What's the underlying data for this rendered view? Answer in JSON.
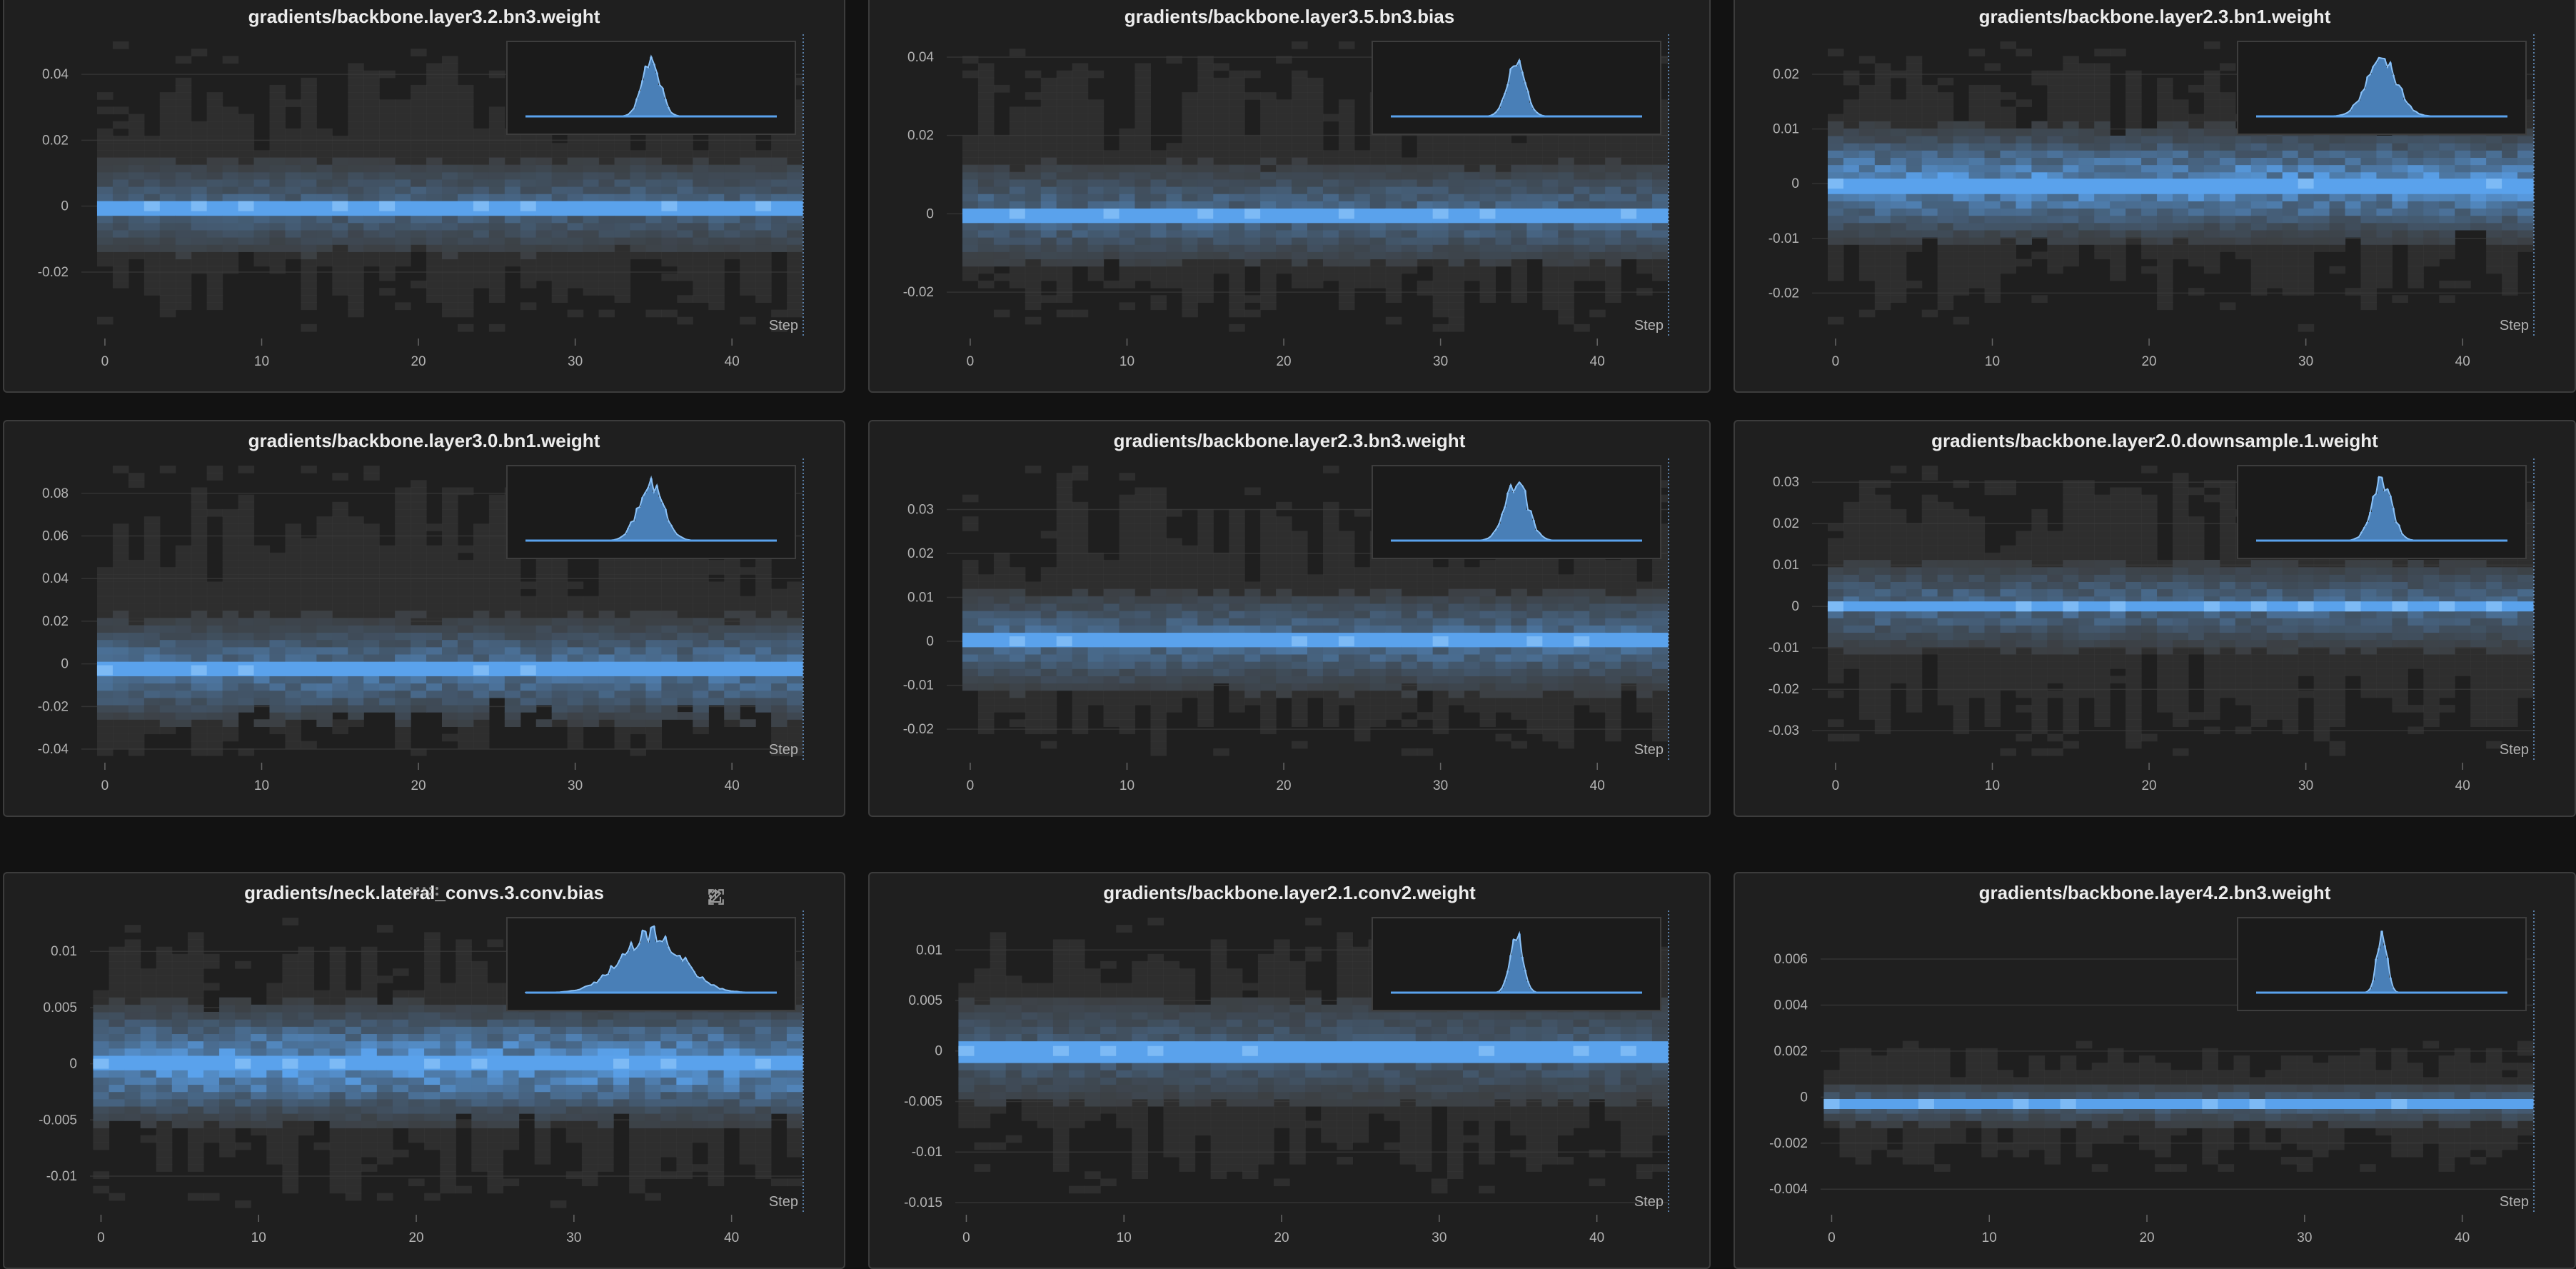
{
  "colors": {
    "panel_bg": "#1f1f1f",
    "panel_border": "#3c3c3c",
    "grid_line": "#333333",
    "accent_blue": "#5aa2ec",
    "dim_cell": "#3a3a3a",
    "tick_text": "#b3b3b3"
  },
  "step_label": "Step",
  "panel_toolbar": {
    "icons": [
      "drag-handle-icon",
      "share-icon",
      "edit-icon",
      "fullscreen-icon",
      "more-options-icon"
    ]
  },
  "chart_data": [
    {
      "type": "heatmap",
      "title": "gradients/backbone.layer3.2.bn3.weight",
      "xlabel": "Step",
      "x_ticks": [
        0,
        10,
        20,
        30,
        40
      ],
      "xlim": [
        -1.5,
        44.5
      ],
      "y_ticks": [
        0.04,
        0.02,
        0,
        -0.02
      ],
      "y_tick_labels": [
        "0.04",
        "0.02",
        "0",
        "-0.02"
      ],
      "ylim": [
        -0.038,
        0.05
      ],
      "center_value": 0,
      "spread": 0.018,
      "max_extent": 0.046,
      "band_strength": 0.35,
      "inset_sharpness": 0.035,
      "seed": 11
    },
    {
      "type": "heatmap",
      "title": "gradients/backbone.layer3.5.bn3.bias",
      "xlabel": "Step",
      "x_ticks": [
        0,
        10,
        20,
        30,
        40
      ],
      "xlim": [
        -1.5,
        44.5
      ],
      "y_ticks": [
        0.04,
        0.02,
        0,
        -0.02
      ],
      "y_tick_labels": [
        "0.04",
        "0.02",
        "0",
        "-0.02"
      ],
      "ylim": [
        -0.03,
        0.044
      ],
      "center_value": 0,
      "spread": 0.016,
      "max_extent": 0.04,
      "band_strength": 0.4,
      "inset_sharpness": 0.035,
      "seed": 23
    },
    {
      "type": "heatmap",
      "title": "gradients/backbone.layer2.3.bn1.weight",
      "xlabel": "Step",
      "x_ticks": [
        0,
        10,
        20,
        30,
        40
      ],
      "xlim": [
        -1.5,
        44.5
      ],
      "y_ticks": [
        0.02,
        0.01,
        0,
        -0.01,
        -0.02
      ],
      "y_tick_labels": [
        "0.02",
        "0.01",
        "0",
        "-0.01",
        "-0.02"
      ],
      "ylim": [
        -0.027,
        0.026
      ],
      "center_value": 0,
      "spread": 0.012,
      "max_extent": 0.024,
      "band_strength": 0.75,
      "inset_sharpness": 0.06,
      "seed": 37
    },
    {
      "type": "heatmap",
      "title": "gradients/backbone.layer3.0.bn1.weight",
      "xlabel": "Step",
      "x_ticks": [
        0,
        10,
        20,
        30,
        40
      ],
      "xlim": [
        -1.5,
        44.5
      ],
      "y_ticks": [
        0.08,
        0.06,
        0.04,
        0.02,
        0,
        -0.02,
        -0.04
      ],
      "y_tick_labels": [
        "0.08",
        "0.06",
        "0.04",
        "0.02",
        "0",
        "-0.02",
        "-0.04"
      ],
      "ylim": [
        -0.043,
        0.093
      ],
      "center_value": -0.003,
      "spread": 0.03,
      "max_extent": 0.09,
      "band_strength": 0.5,
      "inset_sharpness": 0.05,
      "seed": 41
    },
    {
      "type": "heatmap",
      "title": "gradients/backbone.layer2.3.bn3.weight",
      "xlabel": "Step",
      "x_ticks": [
        0,
        10,
        20,
        30,
        40
      ],
      "xlim": [
        -1.5,
        44.5
      ],
      "y_ticks": [
        0.03,
        0.02,
        0.01,
        0,
        -0.01,
        -0.02
      ],
      "y_tick_labels": [
        "0.03",
        "0.02",
        "0.01",
        "0",
        "-0.01",
        "-0.02"
      ],
      "ylim": [
        -0.026,
        0.04
      ],
      "center_value": 0,
      "spread": 0.014,
      "max_extent": 0.036,
      "band_strength": 0.45,
      "inset_sharpness": 0.045,
      "seed": 53
    },
    {
      "type": "heatmap",
      "title": "gradients/backbone.layer2.0.downsample.1.weight",
      "xlabel": "Step",
      "x_ticks": [
        0,
        10,
        20,
        30,
        40
      ],
      "xlim": [
        -1.5,
        44.5
      ],
      "y_ticks": [
        0.03,
        0.02,
        0.01,
        0,
        -0.01,
        -0.02,
        -0.03
      ],
      "y_tick_labels": [
        "0.03",
        "0.02",
        "0.01",
        "0",
        "-0.01",
        "-0.02",
        "-0.03"
      ],
      "ylim": [
        -0.036,
        0.034
      ],
      "center_value": 0,
      "spread": 0.013,
      "max_extent": 0.032,
      "band_strength": 0.4,
      "inset_sharpness": 0.04,
      "seed": 67
    },
    {
      "type": "heatmap",
      "title": "gradients/neck.lateral_convs.3.conv.bias",
      "xlabel": "Step",
      "x_ticks": [
        0,
        10,
        20,
        30,
        40
      ],
      "xlim": [
        -0.7,
        44.5
      ],
      "y_ticks": [
        0.01,
        0.005,
        0,
        -0.005,
        -0.01
      ],
      "y_tick_labels": [
        "0.01",
        "0.005",
        "0",
        "-0.005",
        "-0.01"
      ],
      "ylim": [
        -0.0128,
        0.013
      ],
      "center_value": 0,
      "spread": 0.006,
      "max_extent": 0.012,
      "band_strength": 0.8,
      "inset_sharpness": 0.12,
      "seed": 79,
      "show_toolbar": true
    },
    {
      "type": "heatmap",
      "title": "gradients/backbone.layer2.1.conv2.weight",
      "xlabel": "Step",
      "x_ticks": [
        0,
        10,
        20,
        30,
        40
      ],
      "xlim": [
        -0.7,
        44.5
      ],
      "y_ticks": [
        0.01,
        0.005,
        0,
        -0.005,
        -0.01,
        -0.015
      ],
      "y_tick_labels": [
        "0.01",
        "0.005",
        "0",
        "-0.005",
        "-0.01",
        "-0.015"
      ],
      "ylim": [
        -0.0155,
        0.0132
      ],
      "center_value": 0,
      "spread": 0.007,
      "max_extent": 0.013,
      "band_strength": 0.3,
      "inset_sharpness": 0.025,
      "seed": 89
    },
    {
      "type": "heatmap",
      "title": "gradients/backbone.layer4.2.bn3.weight",
      "xlabel": "Step",
      "x_ticks": [
        0,
        10,
        20,
        30,
        40
      ],
      "xlim": [
        -0.7,
        44.5
      ],
      "y_ticks": [
        0.006,
        0.004,
        0.002,
        0,
        -0.002,
        -0.004
      ],
      "y_tick_labels": [
        "0.006",
        "0.004",
        "0.002",
        "0",
        "-0.002",
        "-0.004"
      ],
      "ylim": [
        -0.0048,
        0.0078
      ],
      "center_value": -0.0003,
      "spread": 0.0012,
      "max_extent": 0.0026,
      "band_strength": 0.3,
      "inset_sharpness": 0.02,
      "seed": 97
    }
  ]
}
